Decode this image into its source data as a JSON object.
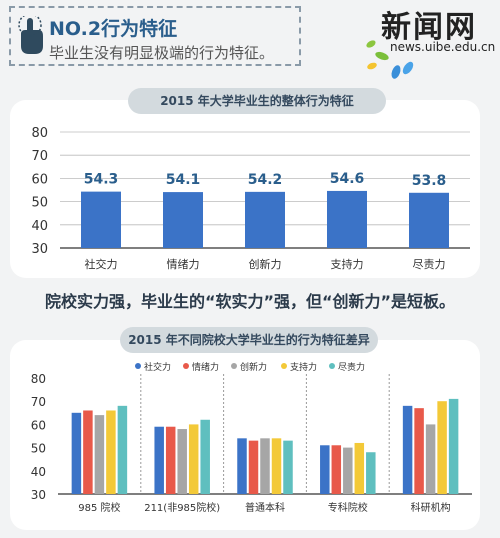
{
  "header": {
    "title": "NO.2行为特征",
    "subtitle": "毕业生没有明显极端的行为特征。"
  },
  "logo": {
    "text": "新闻网",
    "url": "news.uibe.edu.cn"
  },
  "middle_text": "院校实力强，毕业生的“软实力”强，但“创新力”是短板。",
  "colors": {
    "bar_single": "#3b73c7",
    "series": [
      "#3b73c7",
      "#e8594a",
      "#a6a6a6",
      "#f3c938",
      "#5fbfbf"
    ]
  },
  "chart_data": [
    {
      "type": "bar",
      "title": "2015 年大学毕业生的整体行为特征",
      "categories": [
        "社交力",
        "情绪力",
        "创新力",
        "支持力",
        "尽责力"
      ],
      "values": [
        54.3,
        54.1,
        54.2,
        54.6,
        53.8
      ],
      "value_labels": [
        "54.3",
        "54.1",
        "54.2",
        "54.6",
        "53.8"
      ],
      "yticks": [
        "80",
        "70",
        "60",
        "50",
        "40",
        "30"
      ],
      "ylim": [
        30,
        80
      ],
      "grid": true
    },
    {
      "type": "bar",
      "title": "2015 年不同院校大学毕业生的行为特征差异",
      "categories": [
        "985 院校",
        "211(非985院校)",
        "普通本科",
        "专科院校",
        "科研机构"
      ],
      "series": [
        {
          "name": "社交力",
          "values": [
            65,
            59,
            54,
            51,
            68
          ]
        },
        {
          "name": "情绪力",
          "values": [
            66,
            59,
            53,
            51,
            67
          ]
        },
        {
          "name": "创新力",
          "values": [
            64,
            58,
            54,
            50,
            60
          ]
        },
        {
          "name": "支持力",
          "values": [
            66,
            60,
            54,
            52,
            70
          ]
        },
        {
          "name": "尽责力",
          "values": [
            68,
            62,
            53,
            48,
            71
          ]
        }
      ],
      "yticks": [
        "80",
        "70",
        "60",
        "50",
        "40",
        "30"
      ],
      "ylim": [
        30,
        80
      ],
      "legend_position": "top",
      "grid": false
    }
  ]
}
